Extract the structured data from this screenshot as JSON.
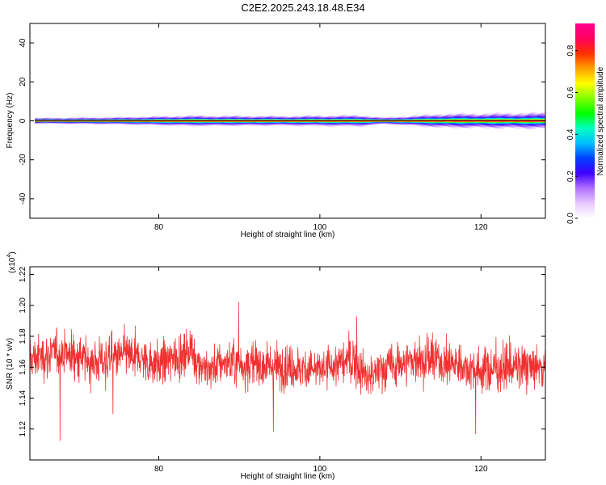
{
  "title": "C2E2.2025.243.18.48.E34",
  "colors": {
    "signal": "#f03030",
    "frame": "#000000"
  },
  "chart_data": [
    {
      "type": "heatmap",
      "xlabel": "Height of straight line (km)",
      "ylabel": "Frequency (Hz)",
      "xlim": [
        64,
        128
      ],
      "ylim": [
        -50,
        50
      ],
      "xticks": [
        80,
        100,
        120
      ],
      "yticks": [
        -40,
        -20,
        0,
        20,
        40
      ],
      "xtick_labels": [
        "80",
        "100",
        "120"
      ],
      "ytick_labels": [
        "-40",
        "-20",
        "0",
        "20",
        "40"
      ],
      "colorbar": {
        "label": "Normalized spectral amplitude",
        "range": [
          0,
          0.93
        ],
        "ticks": [
          0.0,
          0.2,
          0.4,
          0.6,
          0.8
        ],
        "tick_labels": [
          "0.0",
          "0.2",
          "0.4",
          "0.6",
          "0.8"
        ],
        "colormap": [
          "#ffffff",
          "#e8c8ff",
          "#b070ff",
          "#4000ff",
          "#0040ff",
          "#00c0ff",
          "#00ffc0",
          "#00ff00",
          "#80ff00",
          "#ffff00",
          "#ffa000",
          "#ff3000",
          "#ff0060",
          "#ff0090"
        ]
      },
      "band_half_width_hz": [
        {
          "x": 64.5,
          "w": 1.2
        },
        {
          "x": 75,
          "w": 1.6
        },
        {
          "x": 84,
          "w": 2.4
        },
        {
          "x": 95,
          "w": 2.2
        },
        {
          "x": 105,
          "w": 2.6
        },
        {
          "x": 108,
          "w": 1.4
        },
        {
          "x": 115,
          "w": 3.2
        },
        {
          "x": 128,
          "w": 3.8
        }
      ]
    },
    {
      "type": "line",
      "xlabel": "Height of straight line (km)",
      "ylabel": "SNR (10 * v/v)",
      "y_multiplier": "(x10",
      "y_multiplier_exp": "4",
      "y_multiplier_close": ")",
      "xlim": [
        64,
        128
      ],
      "ylim": [
        1.1,
        1.225
      ],
      "xticks": [
        80,
        100,
        120
      ],
      "yticks": [
        1.12,
        1.14,
        1.16,
        1.18,
        1.2,
        1.22
      ],
      "xtick_labels": [
        "80",
        "100",
        "120"
      ],
      "ytick_labels": [
        "1.12",
        "1.14",
        "1.16",
        "1.18",
        "1.20",
        "1.22"
      ],
      "series_mean": 1.162,
      "series_spread": 0.014,
      "sample_count": 1900,
      "x": [
        64,
        68,
        72,
        76,
        80,
        84,
        86,
        88,
        92,
        96,
        100,
        104,
        106,
        108,
        112,
        116,
        120,
        124,
        128
      ],
      "y": [
        1.165,
        1.17,
        1.163,
        1.168,
        1.162,
        1.17,
        1.158,
        1.163,
        1.162,
        1.16,
        1.158,
        1.165,
        1.152,
        1.16,
        1.165,
        1.163,
        1.158,
        1.16,
        1.16
      ]
    }
  ]
}
